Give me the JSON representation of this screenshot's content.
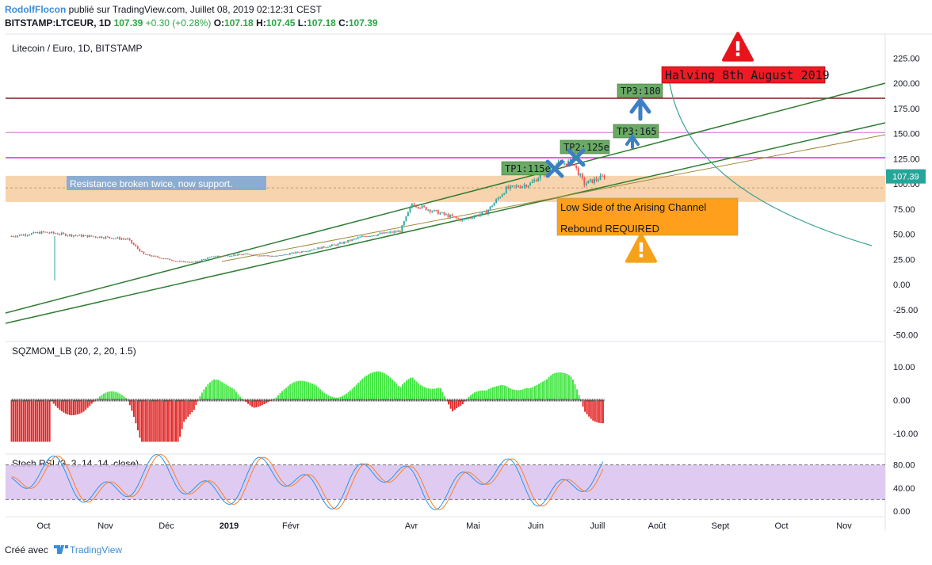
{
  "header": {
    "author": "RodolfFlocon",
    "published_text": " publié sur TradingView.com, Juillet 08, 2019 02:12:31 CEST",
    "symbol": "BITSTAMP:LTCEUR, 1D",
    "last": "107.39",
    "change": "+0.30 (+0.28%)",
    "o_label": "O:",
    "o": "107.18",
    "h_label": "H:",
    "h": "107.45",
    "l_label": "L:",
    "l": "107.18",
    "c_label": "C:",
    "c": "107.39"
  },
  "footer": {
    "created_with": "Créé avec",
    "brand": "TradingView"
  },
  "colors": {
    "up": "#26a69a",
    "down": "#ef5350",
    "channel": "#2e7d32",
    "support_zone": "#f5c99a",
    "resistance_dark": "#7b1f1f",
    "magenta": "#e91ee9",
    "pink": "#d98ad9",
    "tp_box": "#6aaa64",
    "arrow": "#3d7fc4",
    "halving": "#ee1b24",
    "warning_box": "#ff9f1c",
    "rsi_band": "#d9c2f0",
    "mom_green": "#2de22d",
    "mom_red": "#e01010"
  },
  "chart_data": [
    {
      "type": "candlestick",
      "title": "Litecoin / Euro, 1D, BITSTAMP",
      "y_axis": {
        "ticks": [
          "225.00",
          "200.00",
          "175.00",
          "150.00",
          "125.00",
          "100.00",
          "75.00",
          "50.00",
          "25.00",
          "0.00",
          "-25.00",
          "-50.00"
        ],
        "last_price_label": "107.39",
        "ylim": [
          -50,
          225
        ]
      },
      "x_axis": {
        "ticks": [
          "Oct",
          "Nov",
          "Déc",
          "2019",
          "Févr",
          "Avr",
          "Mai",
          "Juin",
          "Juill",
          "Août",
          "Sept",
          "Oct",
          "Nov"
        ]
      },
      "price_path": [
        {
          "x": "2018-09-15",
          "y": 48
        },
        {
          "x": "2018-10-01",
          "y": 52
        },
        {
          "x": "2018-10-15",
          "y": 49
        },
        {
          "x": "2018-11-01",
          "y": 47
        },
        {
          "x": "2018-11-12",
          "y": 45
        },
        {
          "x": "2018-11-20",
          "y": 30
        },
        {
          "x": "2018-12-07",
          "y": 23
        },
        {
          "x": "2018-12-15",
          "y": 22
        },
        {
          "x": "2018-12-25",
          "y": 28
        },
        {
          "x": "2019-01-10",
          "y": 30
        },
        {
          "x": "2019-01-25",
          "y": 28
        },
        {
          "x": "2019-02-10",
          "y": 34
        },
        {
          "x": "2019-02-25",
          "y": 40
        },
        {
          "x": "2019-03-10",
          "y": 48
        },
        {
          "x": "2019-03-28",
          "y": 53
        },
        {
          "x": "2019-04-03",
          "y": 80
        },
        {
          "x": "2019-04-15",
          "y": 72
        },
        {
          "x": "2019-04-28",
          "y": 64
        },
        {
          "x": "2019-05-10",
          "y": 72
        },
        {
          "x": "2019-05-20",
          "y": 95
        },
        {
          "x": "2019-06-01",
          "y": 100
        },
        {
          "x": "2019-06-12",
          "y": 118
        },
        {
          "x": "2019-06-22",
          "y": 122
        },
        {
          "x": "2019-06-28",
          "y": 100
        },
        {
          "x": "2019-07-08",
          "y": 107.39
        }
      ],
      "annotations": [
        "Resistance broken twice, now support.",
        "TP1:115e",
        "TP2:125e",
        "TP3:165",
        "TP3:180",
        "Halving 8th August 2019",
        "Low Side of the Arising Channel",
        "Rebound REQUIRED"
      ]
    },
    {
      "type": "histogram",
      "title": "SQZMOM_LB (20, 2, 20, 1.5)",
      "y_axis": {
        "ticks": [
          "10.00",
          "0.00",
          "-10.00"
        ]
      }
    },
    {
      "type": "line",
      "title": "Stoch RSI (3, 3, 14, 14, close)",
      "y_axis": {
        "ticks": [
          "80.00",
          "40.00",
          "0.00"
        ]
      },
      "series": [
        {
          "values": []
        },
        {
          "values": []
        }
      ]
    }
  ]
}
